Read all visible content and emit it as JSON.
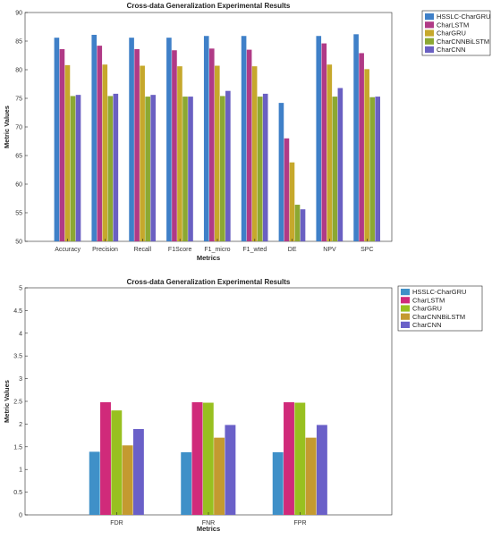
{
  "chart_data": [
    {
      "type": "bar",
      "title": "Cross-data Generalization Experimental Results",
      "xlabel": "Metrics",
      "ylabel": "Metric Values",
      "ylim": [
        50,
        90
      ],
      "yticks": [
        50,
        55,
        60,
        65,
        70,
        75,
        80,
        85,
        90
      ],
      "grid": false,
      "legend_position": "top-right",
      "categories": [
        "Accuracy",
        "Precision",
        "Recall",
        "F1Score",
        "F1_micro",
        "F1_wted",
        "DE",
        "NPV",
        "SPC"
      ],
      "series": [
        {
          "name": "HSSLC-CharGRU",
          "color": "#3f80c8",
          "values": [
            85.6,
            86.1,
            85.6,
            85.6,
            85.9,
            85.9,
            74.2,
            85.9,
            86.2
          ]
        },
        {
          "name": "CharLSTM",
          "color": "#b03a86",
          "values": [
            83.6,
            84.2,
            83.6,
            83.4,
            83.7,
            83.5,
            68.0,
            84.6,
            82.9
          ]
        },
        {
          "name": "CharGRU",
          "color": "#c6a82c",
          "values": [
            80.8,
            80.9,
            80.7,
            80.6,
            80.7,
            80.6,
            63.8,
            80.9,
            80.1
          ]
        },
        {
          "name": "CharCNNBiLSTM",
          "color": "#8ca832",
          "values": [
            75.4,
            75.4,
            75.3,
            75.3,
            75.4,
            75.3,
            56.4,
            75.3,
            75.2
          ]
        },
        {
          "name": "CharCNN",
          "color": "#6a60c2",
          "values": [
            75.6,
            75.8,
            75.6,
            75.3,
            76.3,
            75.8,
            55.6,
            76.8,
            75.3
          ]
        }
      ]
    },
    {
      "type": "bar",
      "title": "Cross-data Generalization Experimental Results",
      "xlabel": "Metrics",
      "ylabel": "Metric Values",
      "ylim": [
        0,
        5
      ],
      "yticks": [
        0,
        0.5,
        1,
        1.5,
        2,
        2.5,
        3,
        3.5,
        4,
        4.5,
        5
      ],
      "grid": false,
      "legend_position": "top-right",
      "categories": [
        "FDR",
        "FNR",
        "FPR"
      ],
      "series": [
        {
          "name": "HSSLC-CharGRU",
          "color": "#3f90c8",
          "values": [
            1.39,
            1.38,
            1.38
          ]
        },
        {
          "name": "CharLSTM",
          "color": "#d02a7a",
          "values": [
            2.48,
            2.48,
            2.48
          ]
        },
        {
          "name": "CharGRU",
          "color": "#98c020",
          "values": [
            2.3,
            2.47,
            2.47
          ]
        },
        {
          "name": "CharCNNBiLSTM",
          "color": "#c49a30",
          "values": [
            1.53,
            1.7,
            1.7
          ]
        },
        {
          "name": "CharCNN",
          "color": "#6a60c8",
          "values": [
            1.89,
            1.98,
            1.98
          ]
        }
      ]
    }
  ]
}
